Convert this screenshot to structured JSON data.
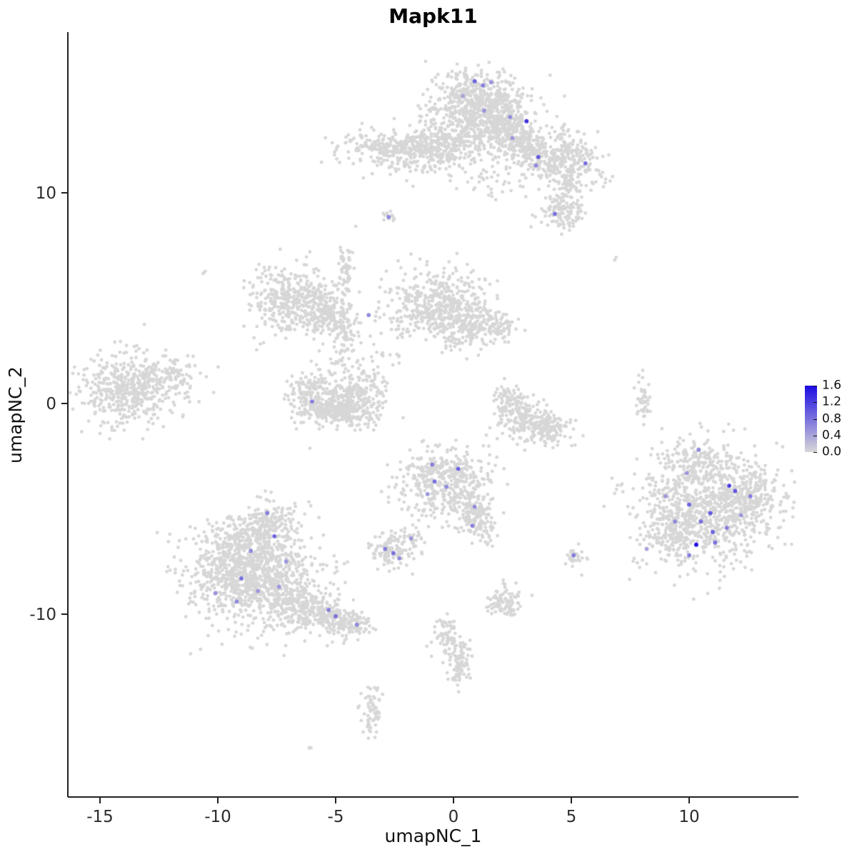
{
  "chart_data": {
    "type": "scatter",
    "title": "Mapk11",
    "xlabel": "umapNC_1",
    "ylabel": "umapNC_2",
    "x_ticks": [
      -15,
      -10,
      -5,
      0,
      5,
      10
    ],
    "y_ticks": [
      -10,
      0,
      10
    ],
    "xlim": [
      -16.4,
      14.6
    ],
    "ylim": [
      -18.6,
      17.6
    ],
    "grid": false,
    "point_color_zero": "#D7D7D7",
    "point_color_max": "#1B0BE3",
    "point_radius": 2.4,
    "legend": {
      "position": "right",
      "min": 0.0,
      "max": 1.6,
      "ticks": [
        1.6,
        1.2,
        0.8,
        0.4,
        0.0
      ]
    },
    "clusters": [
      {
        "cx": 1.2,
        "cy": 14.1,
        "sx": 1.0,
        "sy": 0.75,
        "n": 650,
        "rot": -15
      },
      {
        "cx": 2.2,
        "cy": 13.0,
        "sx": 0.6,
        "sy": 0.5,
        "n": 200,
        "rot": -30
      },
      {
        "cx": 3.2,
        "cy": 12.1,
        "sx": 0.5,
        "sy": 0.45,
        "n": 130,
        "rot": -30
      },
      {
        "cx": 4.1,
        "cy": 11.4,
        "sx": 0.55,
        "sy": 0.4,
        "n": 130,
        "rot": -20
      },
      {
        "cx": 5.3,
        "cy": 11.6,
        "sx": 0.5,
        "sy": 0.55,
        "n": 110,
        "rot": 0
      },
      {
        "cx": 4.9,
        "cy": 10.4,
        "sx": 0.3,
        "sy": 0.3,
        "n": 40,
        "rot": 0
      },
      {
        "cx": -2.4,
        "cy": 12.1,
        "sx": 1.2,
        "sy": 0.45,
        "n": 300,
        "rot": 0
      },
      {
        "cx": -0.8,
        "cy": 12.0,
        "sx": 0.8,
        "sy": 0.5,
        "n": 200,
        "rot": 0
      },
      {
        "cx": 0.4,
        "cy": 12.5,
        "sx": 0.5,
        "sy": 0.4,
        "n": 90,
        "rot": 0
      },
      {
        "cx": 1.5,
        "cy": 11.0,
        "sx": 0.8,
        "sy": 0.6,
        "n": 60,
        "rot": 0
      },
      {
        "cx": -0.6,
        "cy": 13.6,
        "sx": 0.5,
        "sy": 0.5,
        "n": 50,
        "rot": 0
      },
      {
        "cx": 4.6,
        "cy": 12.6,
        "sx": 0.35,
        "sy": 0.4,
        "n": 40,
        "rot": 0
      },
      {
        "cx": 6.3,
        "cy": 10.9,
        "sx": 0.2,
        "sy": 0.3,
        "n": 15,
        "rot": 0
      },
      {
        "cx": 4.7,
        "cy": 9.2,
        "sx": 0.5,
        "sy": 0.45,
        "n": 130,
        "rot": 0
      },
      {
        "cx": -2.75,
        "cy": 8.85,
        "sx": 0.14,
        "sy": 0.12,
        "n": 12,
        "rot": 0
      },
      {
        "cx": -4.55,
        "cy": 6.6,
        "sx": 0.18,
        "sy": 0.75,
        "n": 55,
        "rot": 0
      },
      {
        "cx": -6.7,
        "cy": 4.9,
        "sx": 0.95,
        "sy": 0.8,
        "n": 430,
        "rot": 0
      },
      {
        "cx": -5.3,
        "cy": 4.3,
        "sx": 0.5,
        "sy": 0.5,
        "n": 120,
        "rot": 0
      },
      {
        "cx": -4.6,
        "cy": 3.5,
        "sx": 0.3,
        "sy": 0.45,
        "n": 60,
        "rot": 0
      },
      {
        "cx": -0.7,
        "cy": 4.6,
        "sx": 1.05,
        "sy": 0.9,
        "n": 520,
        "rot": 0
      },
      {
        "cx": 0.9,
        "cy": 3.8,
        "sx": 0.6,
        "sy": 0.5,
        "n": 140,
        "rot": 0
      },
      {
        "cx": 2.0,
        "cy": 3.6,
        "sx": 0.4,
        "sy": 0.35,
        "n": 50,
        "rot": 0
      },
      {
        "cx": -4.6,
        "cy": 2.4,
        "sx": 0.3,
        "sy": 0.8,
        "n": 45,
        "rot": 0
      },
      {
        "cx": -3.0,
        "cy": 2.0,
        "sx": 0.7,
        "sy": 0.8,
        "n": 25,
        "rot": 0
      },
      {
        "cx": -6.0,
        "cy": 0.4,
        "sx": 0.5,
        "sy": 0.6,
        "n": 190,
        "rot": 0
      },
      {
        "cx": -5.0,
        "cy": -0.25,
        "sx": 0.65,
        "sy": 0.4,
        "n": 260,
        "rot": 0
      },
      {
        "cx": -3.9,
        "cy": 0.3,
        "sx": 0.5,
        "sy": 0.6,
        "n": 190,
        "rot": 0
      },
      {
        "cx": -13.6,
        "cy": 0.8,
        "sx": 1.15,
        "sy": 0.8,
        "n": 520,
        "rot": 10
      },
      {
        "cx": -11.9,
        "cy": 1.5,
        "sx": 0.4,
        "sy": 0.3,
        "n": 40,
        "rot": 0
      },
      {
        "cx": 2.3,
        "cy": 0.2,
        "sx": 0.35,
        "sy": 0.45,
        "n": 70,
        "rot": 0
      },
      {
        "cx": 3.0,
        "cy": -0.7,
        "sx": 0.55,
        "sy": 0.5,
        "n": 150,
        "rot": 0
      },
      {
        "cx": 3.95,
        "cy": -1.2,
        "sx": 0.5,
        "sy": 0.4,
        "n": 140,
        "rot": 0
      },
      {
        "cx": -0.4,
        "cy": -3.7,
        "sx": 0.95,
        "sy": 0.85,
        "n": 430,
        "rot": 0
      },
      {
        "cx": 0.8,
        "cy": -5.2,
        "sx": 0.45,
        "sy": 0.5,
        "n": 120,
        "rot": 0
      },
      {
        "cx": 1.2,
        "cy": -6.0,
        "sx": 0.3,
        "sy": 0.3,
        "n": 40,
        "rot": 0
      },
      {
        "cx": -2.6,
        "cy": -7.0,
        "sx": 0.45,
        "sy": 0.4,
        "n": 110,
        "rot": 0
      },
      {
        "cx": -1.8,
        "cy": -6.4,
        "sx": 0.25,
        "sy": 0.25,
        "n": 25,
        "rot": 0
      },
      {
        "cx": -8.6,
        "cy": -8.1,
        "sx": 1.35,
        "sy": 1.15,
        "n": 1050,
        "rot": 0
      },
      {
        "cx": -7.9,
        "cy": -5.7,
        "sx": 0.55,
        "sy": 0.6,
        "n": 150,
        "rot": 0
      },
      {
        "cx": -9.0,
        "cy": -6.6,
        "sx": 0.6,
        "sy": 0.5,
        "n": 140,
        "rot": 0
      },
      {
        "cx": -6.7,
        "cy": -9.6,
        "sx": 0.75,
        "sy": 0.5,
        "n": 240,
        "rot": -25
      },
      {
        "cx": -5.2,
        "cy": -10.1,
        "sx": 0.5,
        "sy": 0.35,
        "n": 140,
        "rot": -15
      },
      {
        "cx": -4.3,
        "cy": -10.5,
        "sx": 0.4,
        "sy": 0.3,
        "n": 90,
        "rot": -10
      },
      {
        "cx": 10.7,
        "cy": -4.8,
        "sx": 1.55,
        "sy": 1.35,
        "n": 950,
        "rot": 0
      },
      {
        "cx": 10.2,
        "cy": -2.7,
        "sx": 0.6,
        "sy": 0.45,
        "n": 90,
        "rot": 0
      },
      {
        "cx": 12.6,
        "cy": -4.6,
        "sx": 0.5,
        "sy": 0.7,
        "n": 140,
        "rot": 0
      },
      {
        "cx": 9.3,
        "cy": -6.3,
        "sx": 0.6,
        "sy": 0.5,
        "n": 120,
        "rot": 0
      },
      {
        "cx": 8.05,
        "cy": 0.3,
        "sx": 0.13,
        "sy": 0.6,
        "n": 45,
        "rot": 0
      },
      {
        "cx": 2.2,
        "cy": -9.4,
        "sx": 0.38,
        "sy": 0.42,
        "n": 90,
        "rot": 0
      },
      {
        "cx": -0.2,
        "cy": -11.2,
        "sx": 0.32,
        "sy": 0.5,
        "n": 75,
        "rot": 15
      },
      {
        "cx": 0.3,
        "cy": -12.4,
        "sx": 0.26,
        "sy": 0.55,
        "n": 75,
        "rot": 0
      },
      {
        "cx": -3.5,
        "cy": -14.6,
        "sx": 0.26,
        "sy": 0.6,
        "n": 65,
        "rot": 0
      },
      {
        "cx": 5.1,
        "cy": -7.3,
        "sx": 0.3,
        "sy": 0.25,
        "n": 30,
        "rot": 0
      },
      {
        "cx": -10.6,
        "cy": 6.3,
        "sx": 0.1,
        "sy": 0.1,
        "n": 3,
        "rot": 0
      },
      {
        "cx": 6.9,
        "cy": 6.9,
        "sx": 0.08,
        "sy": 0.08,
        "n": 2,
        "rot": 0
      },
      {
        "cx": -6.1,
        "cy": -16.3,
        "sx": 0.1,
        "sy": 0.08,
        "n": 3,
        "rot": 0
      }
    ],
    "expressing_cells": [
      {
        "x": 0.9,
        "y": 15.3,
        "v": 0.9
      },
      {
        "x": 1.25,
        "y": 15.1,
        "v": 0.7
      },
      {
        "x": 1.6,
        "y": 15.25,
        "v": 0.5
      },
      {
        "x": 0.4,
        "y": 14.6,
        "v": 0.4
      },
      {
        "x": 1.3,
        "y": 13.9,
        "v": 0.5
      },
      {
        "x": 2.4,
        "y": 13.6,
        "v": 0.6
      },
      {
        "x": 3.1,
        "y": 13.4,
        "v": 1.3
      },
      {
        "x": 2.5,
        "y": 12.6,
        "v": 0.5
      },
      {
        "x": 3.6,
        "y": 11.7,
        "v": 1.0
      },
      {
        "x": 3.5,
        "y": 11.3,
        "v": 0.6
      },
      {
        "x": 5.6,
        "y": 11.4,
        "v": 0.8
      },
      {
        "x": 4.3,
        "y": 9.0,
        "v": 0.8
      },
      {
        "x": -2.75,
        "y": 8.85,
        "v": 0.6
      },
      {
        "x": -3.6,
        "y": 4.2,
        "v": 0.6
      },
      {
        "x": -6.0,
        "y": 0.1,
        "v": 0.7
      },
      {
        "x": -0.9,
        "y": -2.9,
        "v": 0.7
      },
      {
        "x": 0.2,
        "y": -3.1,
        "v": 0.9
      },
      {
        "x": -0.8,
        "y": -3.7,
        "v": 0.8
      },
      {
        "x": -0.3,
        "y": -3.95,
        "v": 0.6
      },
      {
        "x": -1.1,
        "y": -4.3,
        "v": 0.5
      },
      {
        "x": 0.9,
        "y": -4.9,
        "v": 0.6
      },
      {
        "x": 0.8,
        "y": -5.8,
        "v": 0.7
      },
      {
        "x": -2.9,
        "y": -6.9,
        "v": 0.7
      },
      {
        "x": -2.55,
        "y": -7.1,
        "v": 0.8
      },
      {
        "x": -2.3,
        "y": -7.35,
        "v": 0.6
      },
      {
        "x": -1.8,
        "y": -6.4,
        "v": 0.5
      },
      {
        "x": -7.9,
        "y": -5.2,
        "v": 0.7
      },
      {
        "x": -7.6,
        "y": -6.3,
        "v": 0.9
      },
      {
        "x": -8.6,
        "y": -7.0,
        "v": 0.6
      },
      {
        "x": -9.0,
        "y": -8.3,
        "v": 0.8
      },
      {
        "x": -8.3,
        "y": -8.9,
        "v": 0.5
      },
      {
        "x": -9.2,
        "y": -9.4,
        "v": 0.6
      },
      {
        "x": -7.4,
        "y": -8.7,
        "v": 0.5
      },
      {
        "x": -10.1,
        "y": -9.0,
        "v": 0.5
      },
      {
        "x": -7.1,
        "y": -7.5,
        "v": 0.5
      },
      {
        "x": -5.3,
        "y": -9.8,
        "v": 0.7
      },
      {
        "x": -5.0,
        "y": -10.1,
        "v": 0.8
      },
      {
        "x": -4.1,
        "y": -10.5,
        "v": 0.6
      },
      {
        "x": 5.1,
        "y": -7.2,
        "v": 0.7
      },
      {
        "x": 10.4,
        "y": -2.2,
        "v": 0.6
      },
      {
        "x": 9.9,
        "y": -3.3,
        "v": 0.5
      },
      {
        "x": 11.7,
        "y": -3.9,
        "v": 1.2
      },
      {
        "x": 11.95,
        "y": -4.15,
        "v": 1.0
      },
      {
        "x": 12.6,
        "y": -4.4,
        "v": 0.7
      },
      {
        "x": 10.0,
        "y": -4.8,
        "v": 0.9
      },
      {
        "x": 10.9,
        "y": -5.2,
        "v": 1.0
      },
      {
        "x": 10.5,
        "y": -5.6,
        "v": 0.8
      },
      {
        "x": 11.0,
        "y": -6.1,
        "v": 0.9
      },
      {
        "x": 10.3,
        "y": -6.7,
        "v": 1.6
      },
      {
        "x": 11.1,
        "y": -6.6,
        "v": 0.8
      },
      {
        "x": 11.6,
        "y": -5.9,
        "v": 0.7
      },
      {
        "x": 12.2,
        "y": -5.3,
        "v": 0.5
      },
      {
        "x": 9.4,
        "y": -5.6,
        "v": 0.6
      },
      {
        "x": 9.0,
        "y": -4.4,
        "v": 0.5
      },
      {
        "x": 10.0,
        "y": -7.2,
        "v": 0.7
      },
      {
        "x": 8.2,
        "y": -6.9,
        "v": 0.4
      }
    ]
  }
}
